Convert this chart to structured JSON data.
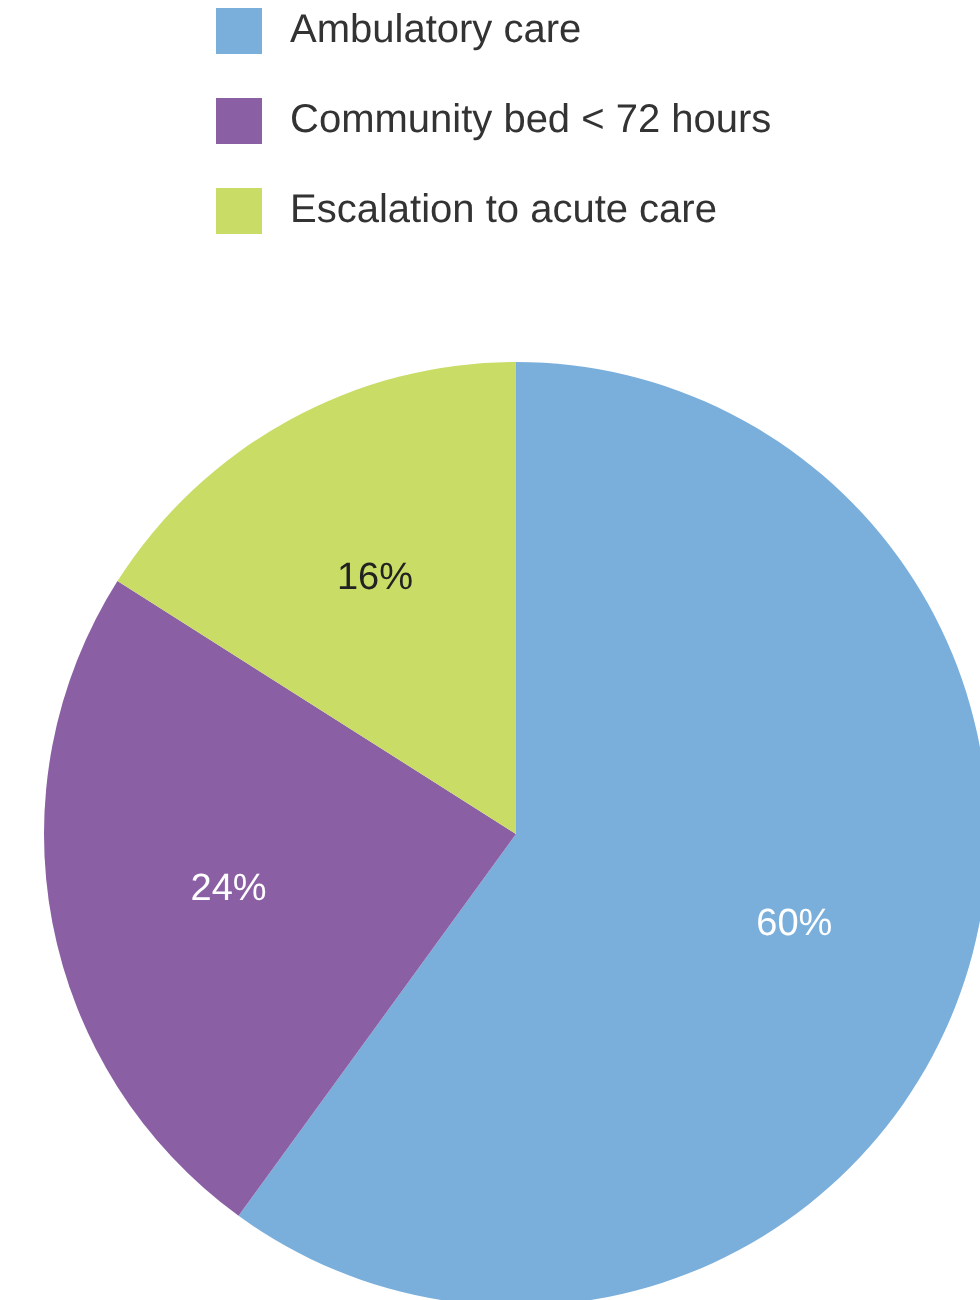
{
  "chart_data": {
    "type": "pie",
    "categories": [
      "Ambulatory care",
      "Community bed < 72 hours",
      "Escalation to acute care"
    ],
    "values": [
      60,
      24,
      16
    ],
    "colors": [
      "#7aafdc",
      "#8a5fa3",
      "#c9dc66"
    ],
    "value_labels": [
      "60%",
      "24%",
      "16%"
    ],
    "legend": "top"
  }
}
